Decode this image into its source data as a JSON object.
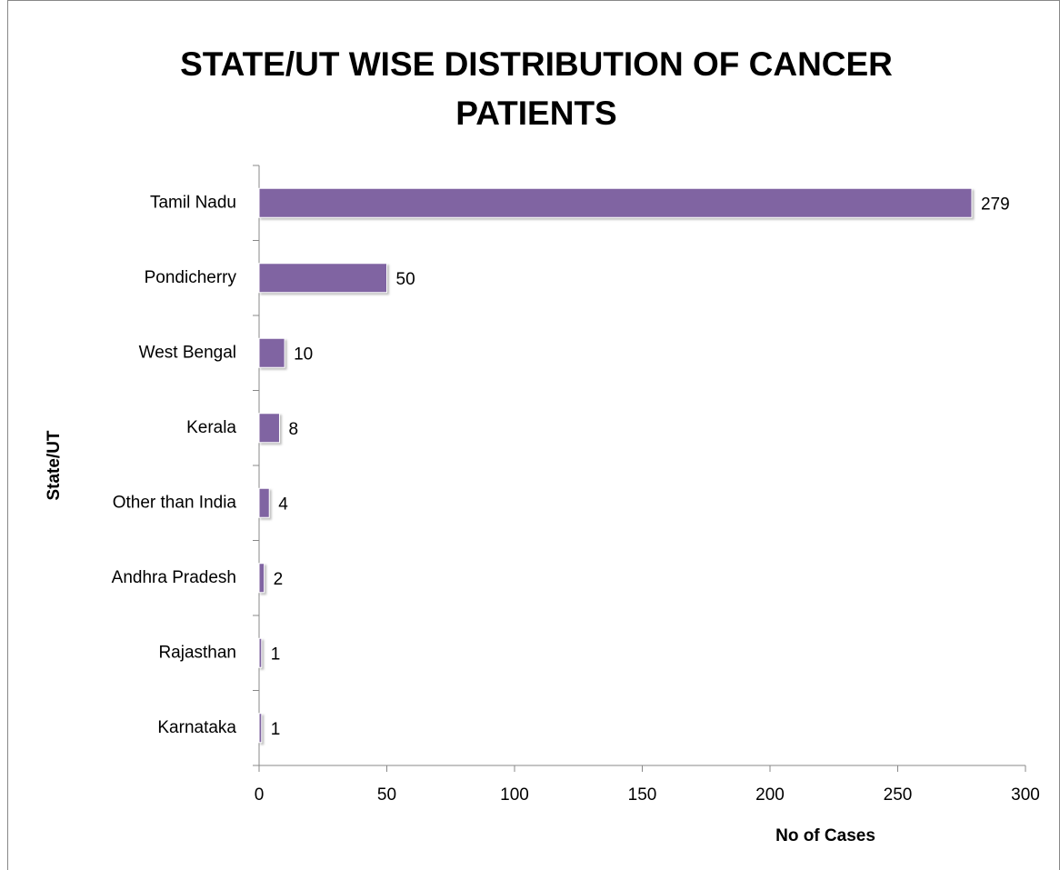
{
  "chart_data": {
    "type": "bar",
    "orientation": "horizontal",
    "title": "STATE/UT WISE DISTRIBUTION OF CANCER PATIENTS",
    "x_label": "No of Cases",
    "y_label": "State/UT",
    "categories": [
      "Tamil Nadu",
      "Pondicherry",
      "West Bengal",
      "Kerala",
      "Other than India",
      "Andhra Pradesh",
      "Rajasthan",
      "Karnataka"
    ],
    "values": [
      279,
      50,
      10,
      8,
      4,
      2,
      1,
      1
    ],
    "color": "#8064a2",
    "xlim": [
      0,
      300
    ],
    "xticks": [
      0,
      50,
      100,
      150,
      200,
      250,
      300
    ],
    "grid": false
  }
}
